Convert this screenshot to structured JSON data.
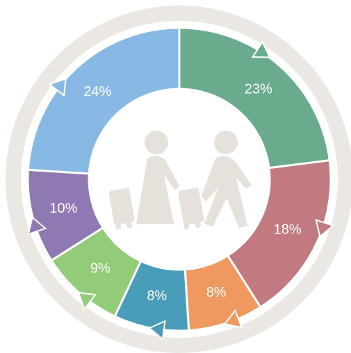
{
  "chart_data": {
    "type": "pie",
    "values": [
      23,
      18,
      8,
      8,
      9,
      10,
      24
    ],
    "value_labels": [
      "23%",
      "18%",
      "8%",
      "8%",
      "9%",
      "10%",
      "24%"
    ],
    "colors": [
      "#6aab8e",
      "#c07a80",
      "#ef9960",
      "#4a9db8",
      "#92cc78",
      "#8f79b3",
      "#87b9e4"
    ]
  }
}
